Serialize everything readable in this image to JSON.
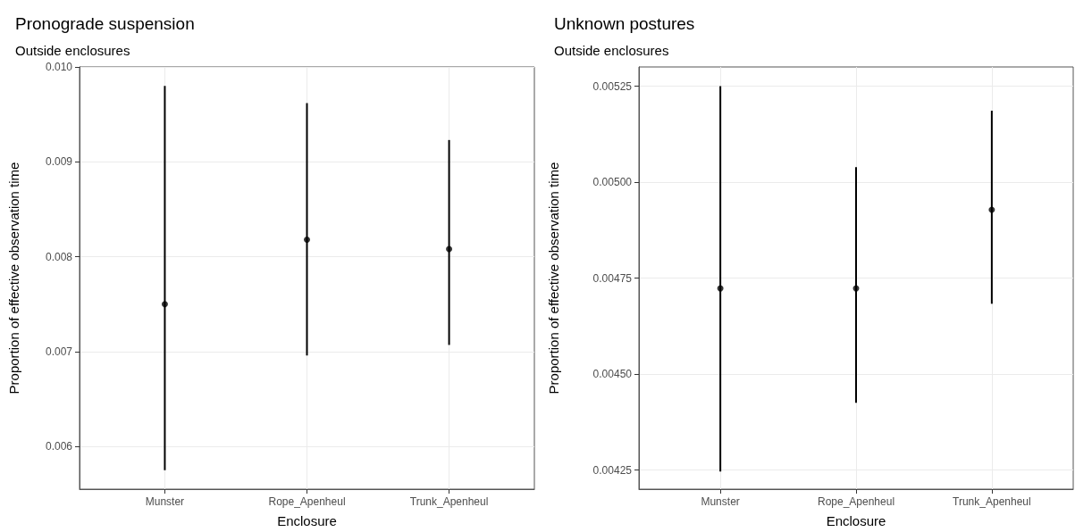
{
  "chart_data": [
    {
      "type": "scatter",
      "title": "Pronograde suspension",
      "subtitle": "Outside enclosures",
      "xlabel": "Enclosure",
      "ylabel": "Proportion of effective observation time",
      "categories": [
        "Munster",
        "Rope_Apenheul",
        "Trunk_Apenheul"
      ],
      "series": [
        {
          "color": "#000000",
          "values": [
            0.0075,
            0.00818,
            0.00808
          ],
          "errors": [
            [
              0.00575,
              0.0098
            ],
            [
              0.00696,
              0.00962
            ],
            [
              0.00707,
              0.00923
            ]
          ]
        }
      ],
      "ylim": [
        0.00555,
        0.01
      ],
      "yticks": [
        {
          "value": 0.006,
          "label": "0.006"
        },
        {
          "value": 0.007,
          "label": "0.007"
        },
        {
          "value": 0.008,
          "label": "0.008"
        },
        {
          "value": 0.009,
          "label": "0.009"
        },
        {
          "value": 0.01,
          "label": "0.010"
        }
      ],
      "grid": true,
      "marker": "circle"
    },
    {
      "type": "scatter",
      "title": "Unknown postures",
      "subtitle": "Outside enclosures",
      "xlabel": "Enclosure",
      "ylabel": "Proportion of effective observation time",
      "categories": [
        "Munster",
        "Rope_Apenheul",
        "Trunk_Apenheul"
      ],
      "series": [
        {
          "color": "#000000",
          "values": [
            0.004723,
            0.004723,
            0.004928
          ],
          "errors": [
            [
              0.004246,
              0.00525
            ],
            [
              0.004425,
              0.005039
            ],
            [
              0.004683,
              0.005186
            ]
          ]
        }
      ],
      "ylim": [
        0.0042,
        0.0053
      ],
      "yticks": [
        {
          "value": 0.00425,
          "label": "0.00425"
        },
        {
          "value": 0.0045,
          "label": "0.00450"
        },
        {
          "value": 0.00475,
          "label": "0.00475"
        },
        {
          "value": 0.005,
          "label": "0.00500"
        },
        {
          "value": 0.00525,
          "label": "0.00525"
        }
      ],
      "grid": true,
      "marker": "circle"
    }
  ]
}
